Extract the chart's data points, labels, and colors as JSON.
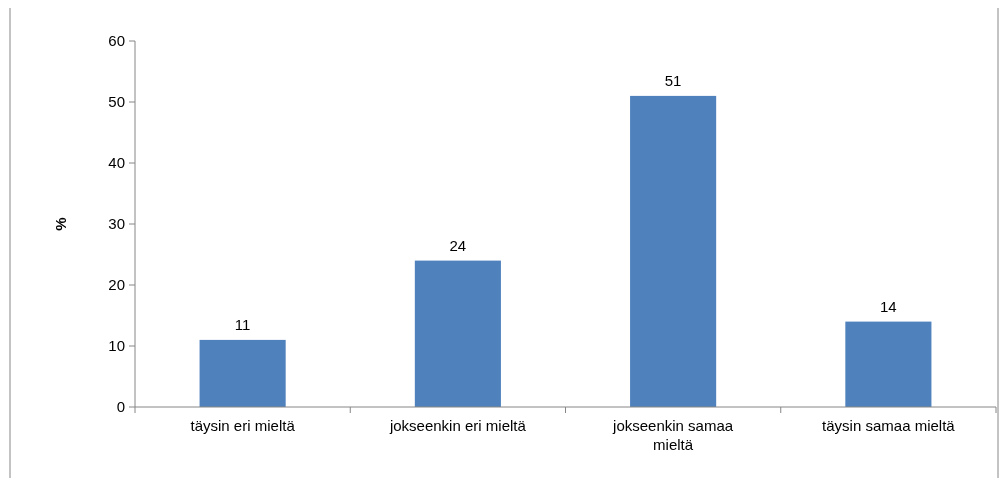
{
  "chart_data": {
    "type": "bar",
    "ylabel": "%",
    "categories": [
      "täysin eri mieltä",
      "jokseenkin eri mieltä",
      "jokseenkin samaa mieltä",
      "täysin samaa mieltä"
    ],
    "values": [
      11,
      24,
      51,
      14
    ],
    "color": "#4f81bd",
    "ylim": [
      0,
      60
    ],
    "yticks": [
      0,
      10,
      20,
      30,
      40,
      50,
      60
    ],
    "data_labels": true
  }
}
